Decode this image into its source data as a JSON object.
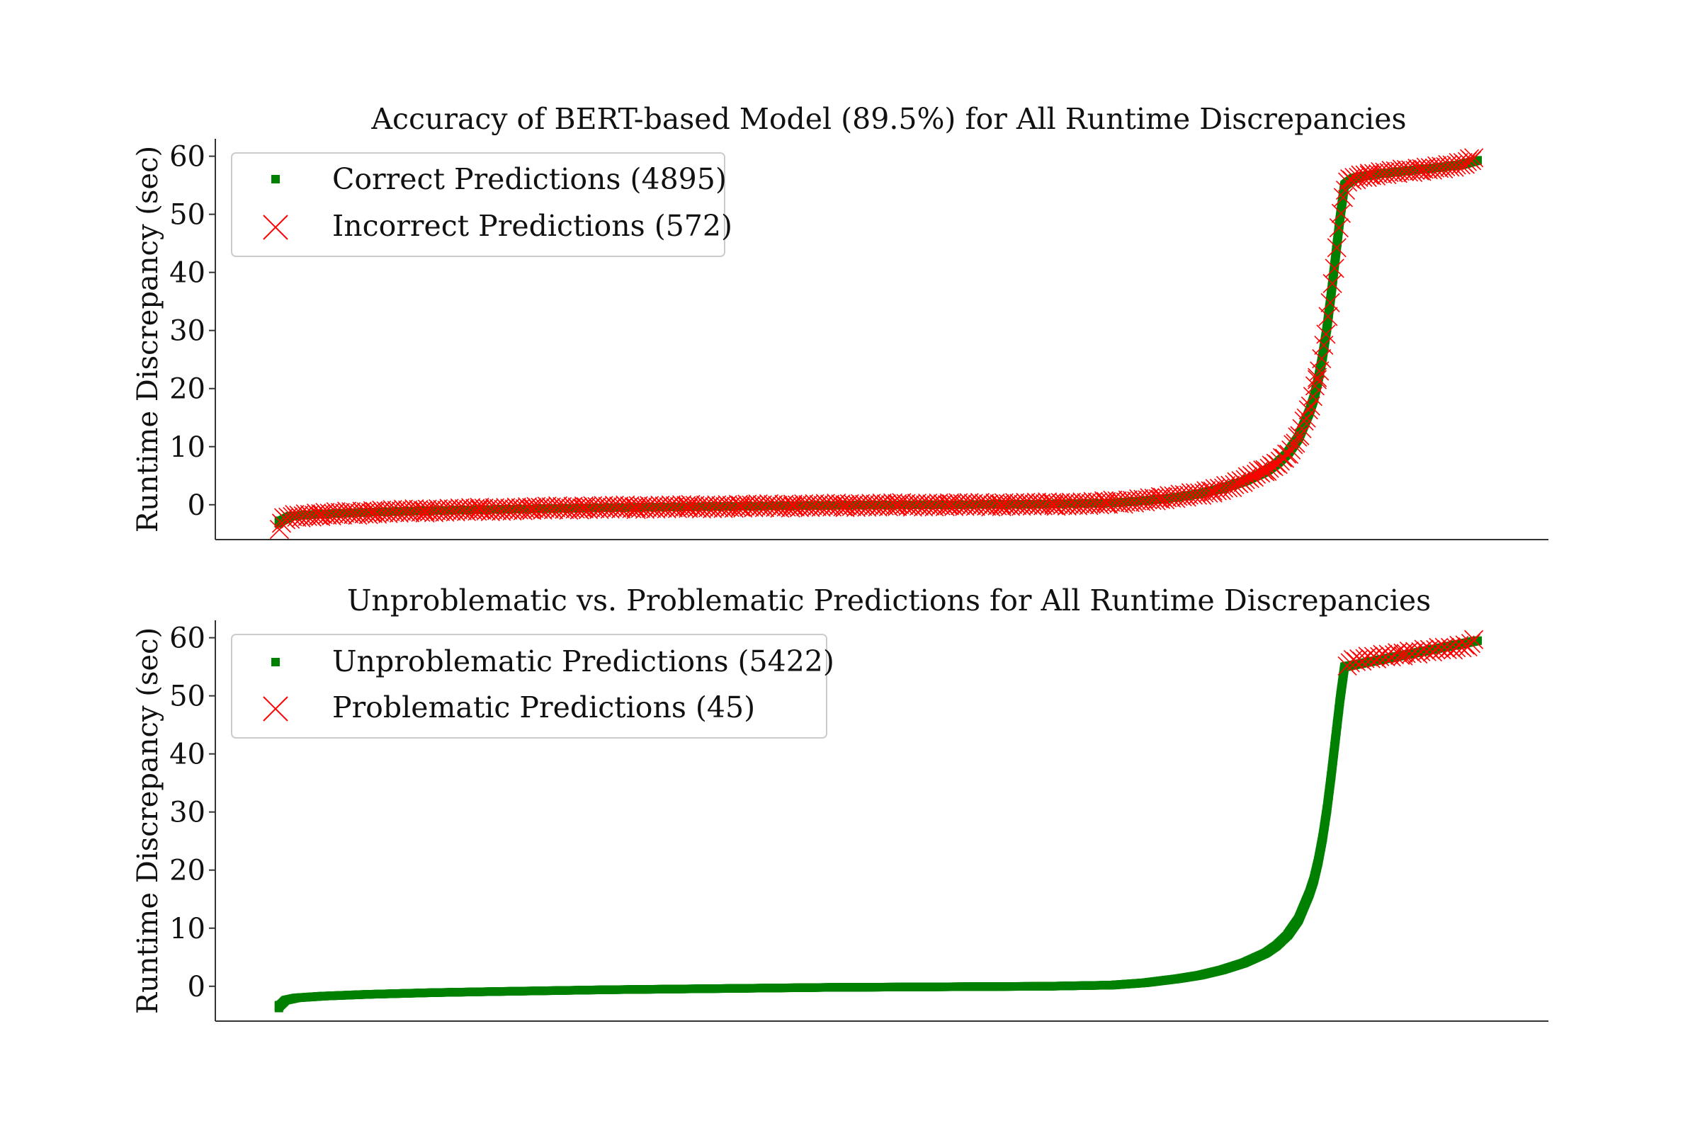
{
  "chart_data": [
    {
      "type": "scatter",
      "title": "Accuracy of BERT-based Model (89.5%) for All Runtime Discrepancies",
      "xlabel": "",
      "ylabel": "Runtime Discrepancy (sec)",
      "ylim": [
        -6,
        63
      ],
      "xlim": [
        -290,
        5790
      ],
      "y_ticks": [
        0,
        10,
        20,
        30,
        40,
        50,
        60
      ],
      "x_ticks_shown": false,
      "grid": false,
      "legend_position": "upper-left",
      "series": [
        {
          "name": "Correct Predictions (4895)",
          "marker": "square",
          "color": "#008000",
          "count": 4895,
          "sampled": true,
          "x": [
            0,
            50,
            100,
            200,
            400,
            700,
            1000,
            1500,
            2000,
            2500,
            3000,
            3500,
            3800,
            3950,
            4100,
            4200,
            4300,
            4400,
            4500,
            4550,
            4600,
            4650,
            4700,
            4720,
            4740,
            4760,
            4780,
            4800,
            4820,
            4840,
            4860,
            4900,
            4950,
            5000,
            5100,
            5200,
            5300,
            5400,
            5467
          ],
          "y": [
            -3.0,
            -2.0,
            -1.8,
            -1.6,
            -1.3,
            -1.0,
            -0.8,
            -0.5,
            -0.3,
            -0.1,
            0.0,
            0.1,
            0.3,
            0.7,
            1.3,
            1.9,
            2.8,
            4.0,
            5.7,
            7.0,
            8.8,
            11.5,
            16.0,
            18.3,
            21.5,
            25.5,
            30.5,
            36.5,
            43.0,
            49.5,
            55.0,
            56.2,
            56.6,
            56.9,
            57.3,
            57.7,
            58.1,
            58.6,
            59.3
          ]
        },
        {
          "name": "Incorrect Predictions (572)",
          "marker": "x",
          "color": "#ff0000",
          "count": 572,
          "sampled": true,
          "x": [
            0,
            20,
            60,
            150,
            300,
            500,
            800,
            1100,
            1400,
            1700,
            2000,
            2300,
            2600,
            2900,
            3200,
            3500,
            3700,
            3850,
            4000,
            4150,
            4250,
            4350,
            4420,
            4480,
            4530,
            4580,
            4620,
            4660,
            4690,
            4710,
            4730,
            4750,
            4770,
            4790,
            4810,
            4830,
            4850,
            4870,
            4900,
            4950,
            5000,
            5050,
            5100,
            5150,
            5200,
            5250,
            5300,
            5350,
            5400,
            5450
          ],
          "y": [
            -4.0,
            -2.5,
            -2.0,
            -1.8,
            -1.5,
            -1.2,
            -0.9,
            -0.7,
            -0.5,
            -0.4,
            -0.3,
            -0.2,
            -0.1,
            0.0,
            0.0,
            0.1,
            0.2,
            0.5,
            1.0,
            1.6,
            2.3,
            3.3,
            4.5,
            5.6,
            6.6,
            7.9,
            9.6,
            12.5,
            15.5,
            17.8,
            20.8,
            24.0,
            28.0,
            33.5,
            39.5,
            46.0,
            52.0,
            55.5,
            56.2,
            56.6,
            56.9,
            57.1,
            57.3,
            57.5,
            57.7,
            57.9,
            58.1,
            58.3,
            58.7,
            59.5
          ]
        }
      ]
    },
    {
      "type": "scatter",
      "title": "Unproblematic vs. Problematic Predictions for All Runtime Discrepancies",
      "xlabel": "",
      "ylabel": "Runtime Discrepancy (sec)",
      "ylim": [
        -6,
        63
      ],
      "xlim": [
        -290,
        5790
      ],
      "y_ticks": [
        0,
        10,
        20,
        30,
        40,
        50,
        60
      ],
      "x_ticks_shown": false,
      "grid": false,
      "legend_position": "upper-left",
      "series": [
        {
          "name": "Unproblematic Predictions (5422)",
          "marker": "square",
          "color": "#008000",
          "count": 5422,
          "sampled": true,
          "x": [
            0,
            30,
            80,
            200,
            400,
            700,
            1000,
            1500,
            2000,
            2500,
            3000,
            3500,
            3800,
            3950,
            4100,
            4200,
            4300,
            4400,
            4500,
            4550,
            4600,
            4650,
            4700,
            4720,
            4740,
            4760,
            4780,
            4800,
            4820,
            4840,
            4860,
            5467
          ],
          "y": [
            -3.5,
            -2.4,
            -2.0,
            -1.7,
            -1.4,
            -1.1,
            -0.9,
            -0.6,
            -0.4,
            -0.2,
            -0.1,
            0.0,
            0.2,
            0.6,
            1.3,
            1.9,
            2.8,
            4.0,
            5.7,
            7.0,
            8.8,
            11.5,
            16.0,
            18.3,
            21.5,
            25.5,
            30.5,
            36.5,
            43.0,
            49.5,
            55.0,
            59.5
          ]
        },
        {
          "name": "Problematic Predictions (45)",
          "marker": "x",
          "color": "#ff0000",
          "count": 45,
          "sampled": true,
          "x": [
            4870,
            4900,
            4930,
            4960,
            5000,
            5030,
            5060,
            5100,
            5130,
            5160,
            5200,
            5230,
            5260,
            5300,
            5330,
            5360,
            5400,
            5430,
            5450
          ],
          "y": [
            55.5,
            56.0,
            56.3,
            56.5,
            56.7,
            56.8,
            57.0,
            57.1,
            57.2,
            57.4,
            57.5,
            57.7,
            57.8,
            58.0,
            58.2,
            58.3,
            58.5,
            58.9,
            59.4
          ]
        }
      ]
    }
  ]
}
